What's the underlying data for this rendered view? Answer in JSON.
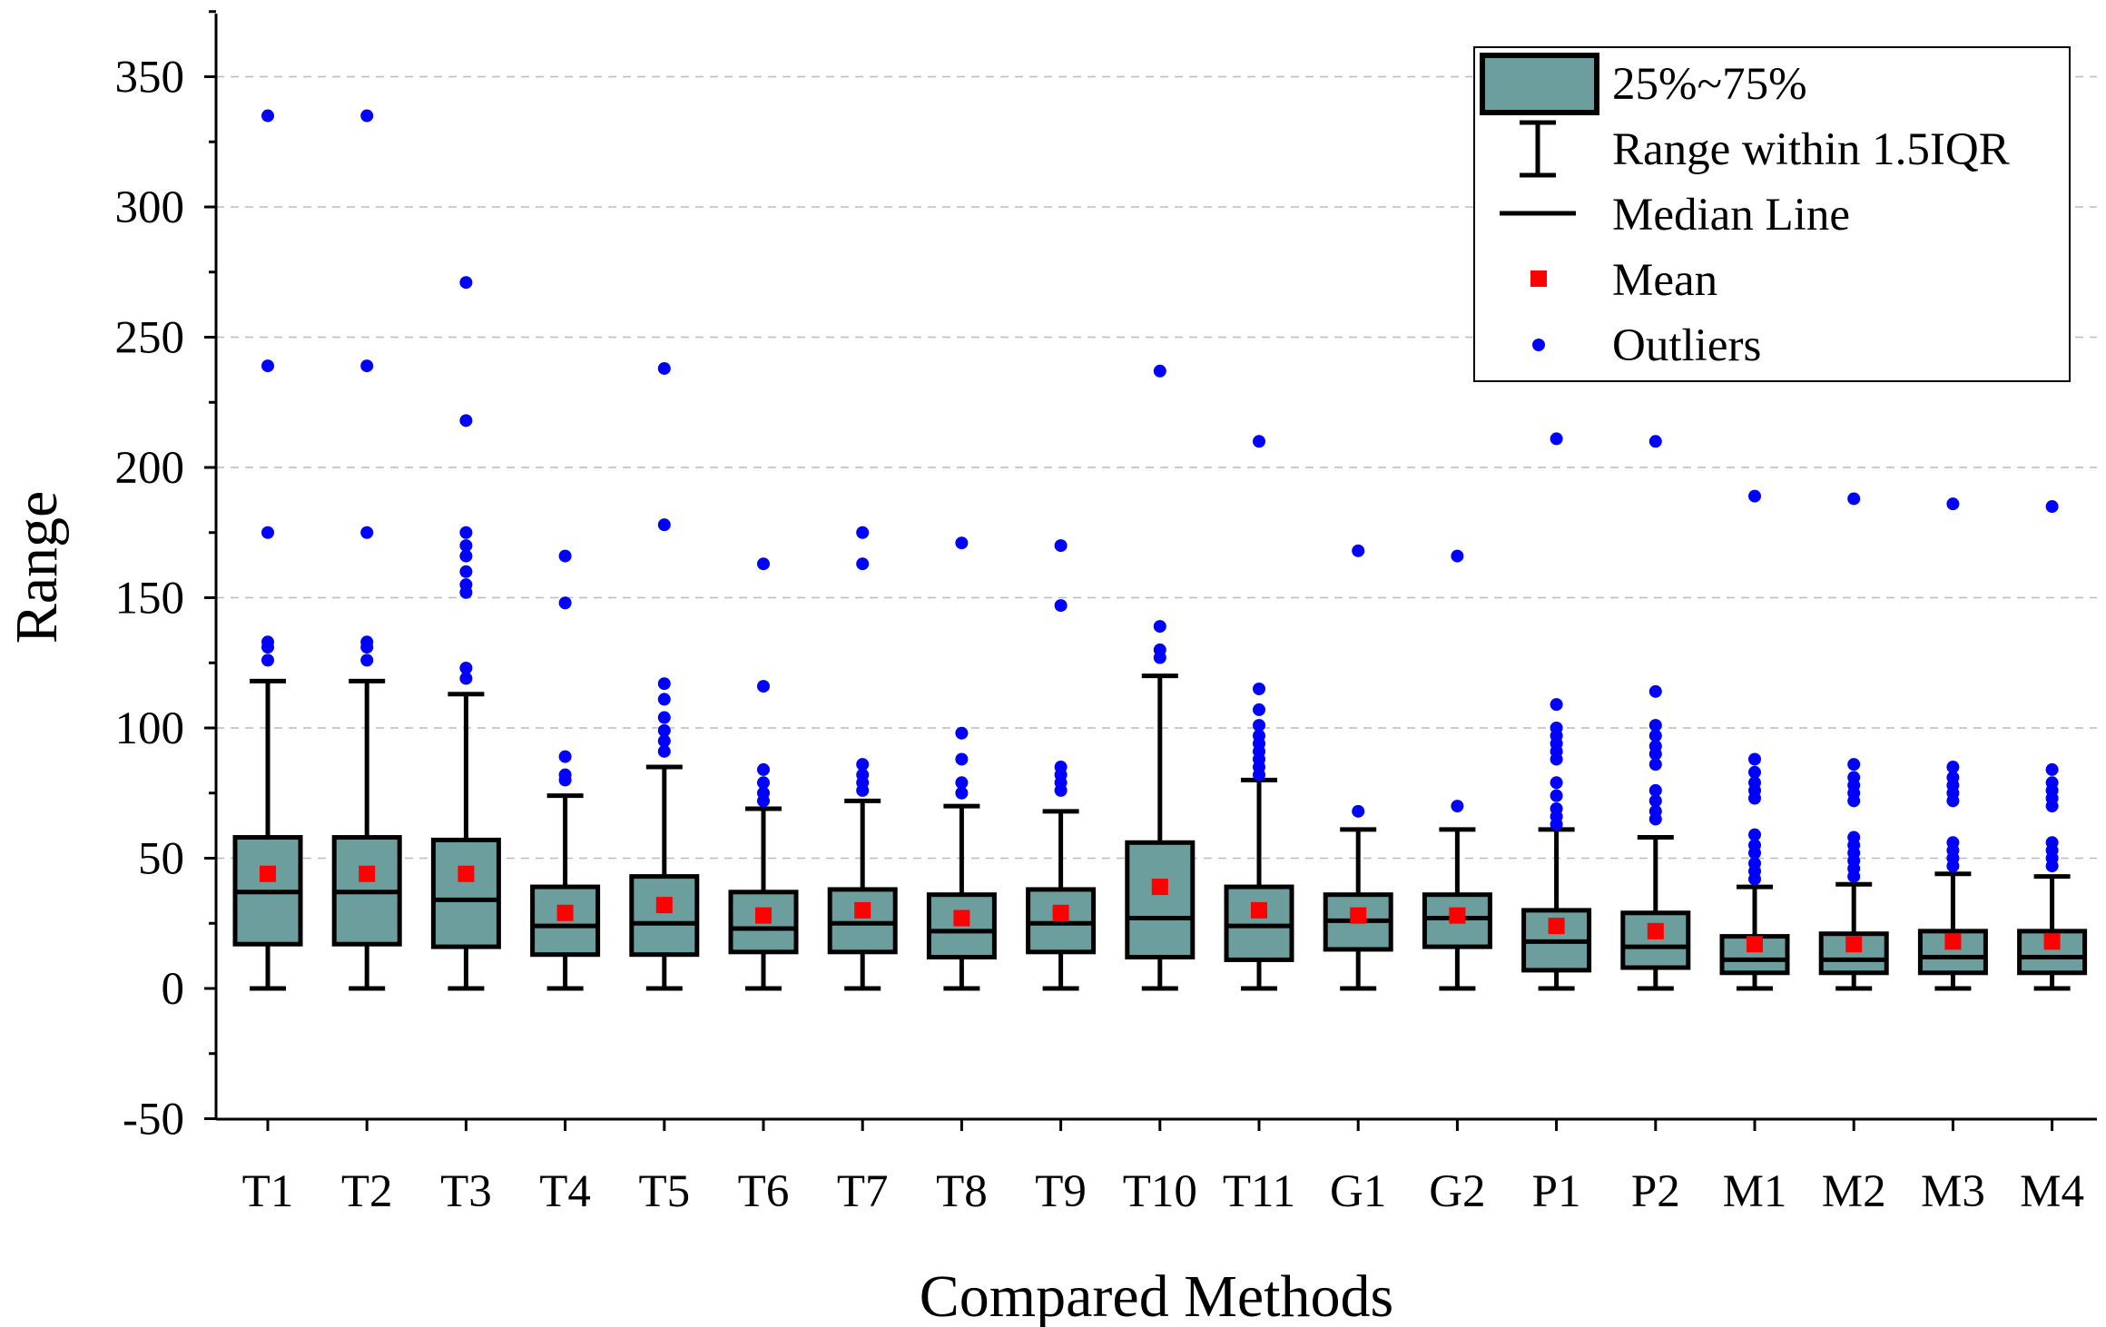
{
  "chart_data": {
    "type": "box",
    "title": "",
    "xlabel": "Compared Methods",
    "ylabel": "Range",
    "ylim": [
      -50,
      375
    ],
    "yticks": [
      -50,
      0,
      50,
      100,
      150,
      200,
      250,
      300,
      350
    ],
    "ytick_labels": [
      "-50",
      "0",
      "50",
      "100",
      "150",
      "200",
      "250",
      "300",
      "350"
    ],
    "grid": "horizontal dashed at major ticks 50-350",
    "legend_position": "top-right",
    "legend": [
      "25%~75%",
      "Range within 1.5IQR",
      "Median Line",
      "Mean",
      "Outliers"
    ],
    "colors": {
      "box_fill": "#6B9E9C",
      "box_edge": "#000000",
      "mean": "#FF0000",
      "outlier": "#0000FF",
      "grid": "#BBBBBB"
    },
    "categories": [
      "T1",
      "T2",
      "T3",
      "T4",
      "T5",
      "T6",
      "T7",
      "T8",
      "T9",
      "T10",
      "T11",
      "G1",
      "G2",
      "P1",
      "P2",
      "M1",
      "M2",
      "M3",
      "M4"
    ],
    "boxes": [
      {
        "name": "T1",
        "whisker_low": 0,
        "q1": 17,
        "median": 37,
        "q3": 58,
        "whisker_high": 118,
        "mean": 44,
        "outliers": [
          126,
          131,
          133,
          175,
          239,
          335
        ]
      },
      {
        "name": "T2",
        "whisker_low": 0,
        "q1": 17,
        "median": 37,
        "q3": 58,
        "whisker_high": 118,
        "mean": 44,
        "outliers": [
          126,
          131,
          133,
          175,
          239,
          335
        ]
      },
      {
        "name": "T3",
        "whisker_low": 0,
        "q1": 16,
        "median": 34,
        "q3": 57,
        "whisker_high": 113,
        "mean": 44,
        "outliers": [
          119,
          123,
          152,
          155,
          160,
          166,
          170,
          175,
          218,
          271
        ]
      },
      {
        "name": "T4",
        "whisker_low": 0,
        "q1": 13,
        "median": 24,
        "q3": 39,
        "whisker_high": 74,
        "mean": 29,
        "outliers": [
          80,
          82,
          89,
          148,
          166
        ]
      },
      {
        "name": "T5",
        "whisker_low": 0,
        "q1": 13,
        "median": 25,
        "q3": 43,
        "whisker_high": 85,
        "mean": 32,
        "outliers": [
          91,
          95,
          99,
          104,
          111,
          117,
          178,
          238
        ]
      },
      {
        "name": "T6",
        "whisker_low": 0,
        "q1": 14,
        "median": 23,
        "q3": 37,
        "whisker_high": 69,
        "mean": 28,
        "outliers": [
          72,
          75,
          79,
          84,
          116,
          163
        ]
      },
      {
        "name": "T7",
        "whisker_low": 0,
        "q1": 14,
        "median": 25,
        "q3": 38,
        "whisker_high": 72,
        "mean": 30,
        "outliers": [
          76,
          79,
          82,
          86,
          163,
          175
        ]
      },
      {
        "name": "T8",
        "whisker_low": 0,
        "q1": 12,
        "median": 22,
        "q3": 36,
        "whisker_high": 70,
        "mean": 27,
        "outliers": [
          75,
          79,
          88,
          98,
          171
        ]
      },
      {
        "name": "T9",
        "whisker_low": 0,
        "q1": 14,
        "median": 25,
        "q3": 38,
        "whisker_high": 68,
        "mean": 29,
        "outliers": [
          76,
          79,
          82,
          85,
          147,
          170
        ]
      },
      {
        "name": "T10",
        "whisker_low": 0,
        "q1": 12,
        "median": 27,
        "q3": 56,
        "whisker_high": 120,
        "mean": 39,
        "outliers": [
          127,
          130,
          139,
          237
        ]
      },
      {
        "name": "T11",
        "whisker_low": 0,
        "q1": 11,
        "median": 24,
        "q3": 39,
        "whisker_high": 80,
        "mean": 30,
        "outliers": [
          82,
          85,
          88,
          91,
          94,
          97,
          101,
          107,
          115,
          210
        ]
      },
      {
        "name": "G1",
        "whisker_low": 0,
        "q1": 15,
        "median": 26,
        "q3": 36,
        "whisker_high": 61,
        "mean": 28,
        "outliers": [
          68,
          168
        ]
      },
      {
        "name": "G2",
        "whisker_low": 0,
        "q1": 16,
        "median": 27,
        "q3": 36,
        "whisker_high": 61,
        "mean": 28,
        "outliers": [
          70,
          166
        ]
      },
      {
        "name": "P1",
        "whisker_low": 0,
        "q1": 7,
        "median": 18,
        "q3": 30,
        "whisker_high": 61,
        "mean": 24,
        "outliers": [
          63,
          66,
          69,
          74,
          79,
          88,
          91,
          94,
          97,
          100,
          109,
          211
        ]
      },
      {
        "name": "P2",
        "whisker_low": 0,
        "q1": 8,
        "median": 16,
        "q3": 29,
        "whisker_high": 58,
        "mean": 22,
        "outliers": [
          65,
          68,
          72,
          76,
          86,
          90,
          93,
          97,
          101,
          114,
          210
        ]
      },
      {
        "name": "M1",
        "whisker_low": 0,
        "q1": 6,
        "median": 11,
        "q3": 20,
        "whisker_high": 39,
        "mean": 17,
        "outliers": [
          42,
          45,
          48,
          52,
          55,
          59,
          73,
          76,
          79,
          83,
          88,
          189
        ]
      },
      {
        "name": "M2",
        "whisker_low": 0,
        "q1": 6,
        "median": 11,
        "q3": 21,
        "whisker_high": 40,
        "mean": 17,
        "outliers": [
          43,
          46,
          49,
          52,
          55,
          58,
          72,
          75,
          78,
          81,
          86,
          188
        ]
      },
      {
        "name": "M3",
        "whisker_low": 0,
        "q1": 6,
        "median": 12,
        "q3": 22,
        "whisker_high": 44,
        "mean": 18,
        "outliers": [
          47,
          50,
          53,
          56,
          72,
          75,
          78,
          81,
          85,
          186
        ]
      },
      {
        "name": "M4",
        "whisker_low": 0,
        "q1": 6,
        "median": 12,
        "q3": 22,
        "whisker_high": 43,
        "mean": 18,
        "outliers": [
          47,
          50,
          53,
          56,
          70,
          73,
          76,
          79,
          84,
          185
        ]
      }
    ]
  }
}
